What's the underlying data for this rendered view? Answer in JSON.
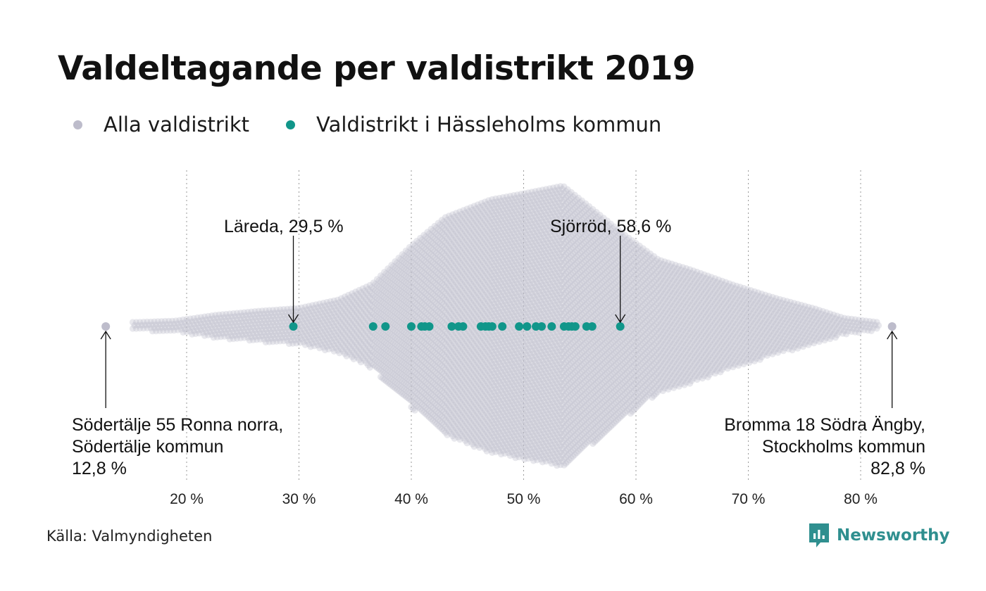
{
  "title": "Valdeltagande per valdistrikt 2019",
  "legend": [
    {
      "label": "Alla valdistrikt",
      "color": "#bdbccb"
    },
    {
      "label": "Valdistrikt i Hässleholms kommun",
      "color": "#11968a"
    }
  ],
  "source": "Källa: Valmyndigheten",
  "brand": {
    "name": "Newsworthy",
    "icon": "newsworthy-logo-icon",
    "color": "#2f8f8f"
  },
  "chart_data": {
    "type": "scatter",
    "style": "beeswarm",
    "title": "Valdeltagande per valdistrikt 2019",
    "xlim": [
      13,
      83
    ],
    "x_ticks": [
      20,
      30,
      40,
      50,
      60,
      70,
      80
    ],
    "x_tick_labels": [
      "20 %",
      "30 %",
      "40 %",
      "50 %",
      "60 %",
      "70 %",
      "80 %"
    ],
    "grid": "vertical dotted",
    "legend_position": "top-left",
    "series": [
      {
        "name": "Alla valdistrikt",
        "color": "#bdbccb",
        "distribution": "densely packed beeswarm of all valdistrikt; peak density near 54 %",
        "range": [
          12.8,
          82.8
        ]
      },
      {
        "name": "Valdistrikt i Hässleholms kommun",
        "color": "#11968a",
        "values": [
          29.5,
          36.6,
          37.7,
          40.0,
          40.9,
          41.2,
          41.6,
          43.6,
          44.2,
          44.6,
          46.2,
          46.6,
          46.9,
          47.2,
          48.1,
          49.6,
          50.3,
          51.1,
          51.6,
          52.5,
          53.6,
          54.0,
          54.3,
          54.6,
          55.6,
          56.1,
          58.6
        ]
      }
    ],
    "annotations": [
      {
        "lines": [
          "Läreda, 29,5 %"
        ],
        "x": 29.5
      },
      {
        "lines": [
          "Sjörröd, 58,6 %"
        ],
        "x": 58.6
      },
      {
        "lines": [
          "Södertälje 55 Ronna norra,",
          "Södertälje kommun",
          "12,8 %"
        ],
        "x": 12.8
      },
      {
        "lines": [
          "Bromma 18 Södra Ängby,",
          "Stockholms kommun",
          "82,8 %"
        ],
        "x": 82.8
      }
    ]
  }
}
